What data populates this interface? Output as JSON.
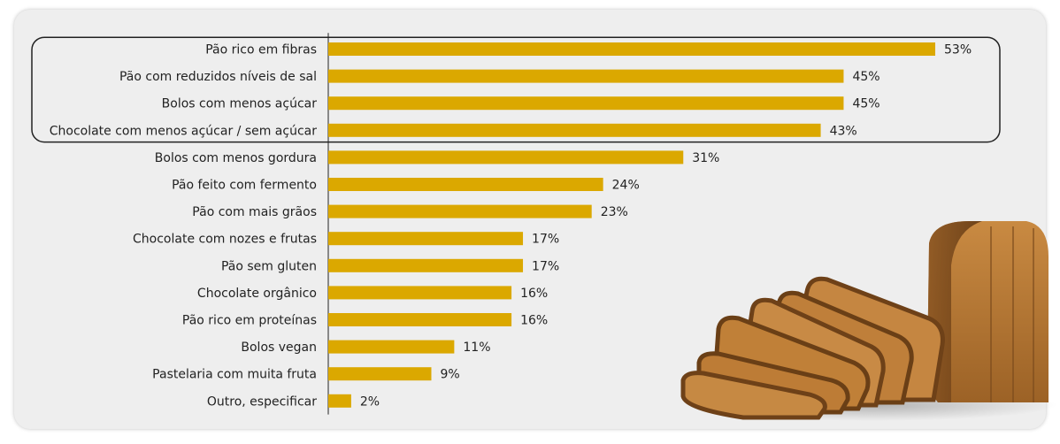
{
  "chart_data": {
    "type": "bar",
    "orientation": "horizontal",
    "title": "",
    "xlabel": "",
    "ylabel": "",
    "xlim": [
      0,
      60
    ],
    "grid": false,
    "legend": "none",
    "bar_color": "#dba800",
    "highlight_count": 4,
    "highlight_border_color": "#222222",
    "categories": [
      "Pão rico em fibras",
      "Pão com reduzidos níveis de sal",
      "Bolos com menos açúcar",
      "Chocolate com menos açúcar / sem açúcar",
      "Bolos com menos gordura",
      "Pão feito com fermento",
      "Pão com mais grãos",
      "Chocolate com nozes e frutas",
      "Pão sem gluten",
      "Chocolate orgânico",
      "Pão rico em proteínas",
      "Bolos vegan",
      "Pastelaria com muita fruta",
      "Outro, especificar"
    ],
    "values": [
      53,
      45,
      45,
      43,
      31,
      24,
      23,
      17,
      17,
      16,
      16,
      11,
      9,
      2
    ],
    "value_labels": [
      "53%",
      "45%",
      "45%",
      "43%",
      "31%",
      "24%",
      "23%",
      "17%",
      "17%",
      "16%",
      "16%",
      "11%",
      "9%",
      "2%"
    ]
  },
  "illustration": {
    "icon": "bread-loaf-slices-icon",
    "crust_color": "#7a4a1c",
    "crumb_color": "#b97a36",
    "highlight_color": "#d89b52"
  }
}
